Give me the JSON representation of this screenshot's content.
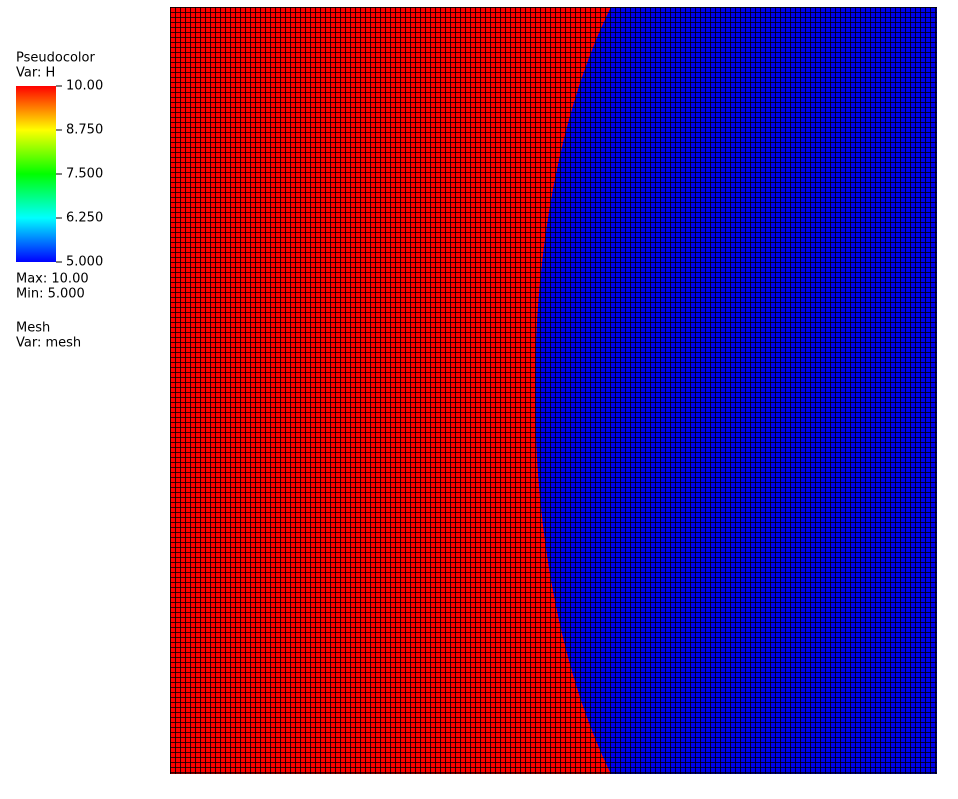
{
  "legend": {
    "plot": "Pseudocolor",
    "variable": "Var: H",
    "ticks": [
      "10.00",
      "8.750",
      "7.500",
      "6.250",
      "5.000"
    ],
    "max": "Max:  10.00",
    "min": "Min:  5.000"
  },
  "mesh_legend": {
    "plot": "Mesh",
    "variable": "Var: mesh"
  }
}
